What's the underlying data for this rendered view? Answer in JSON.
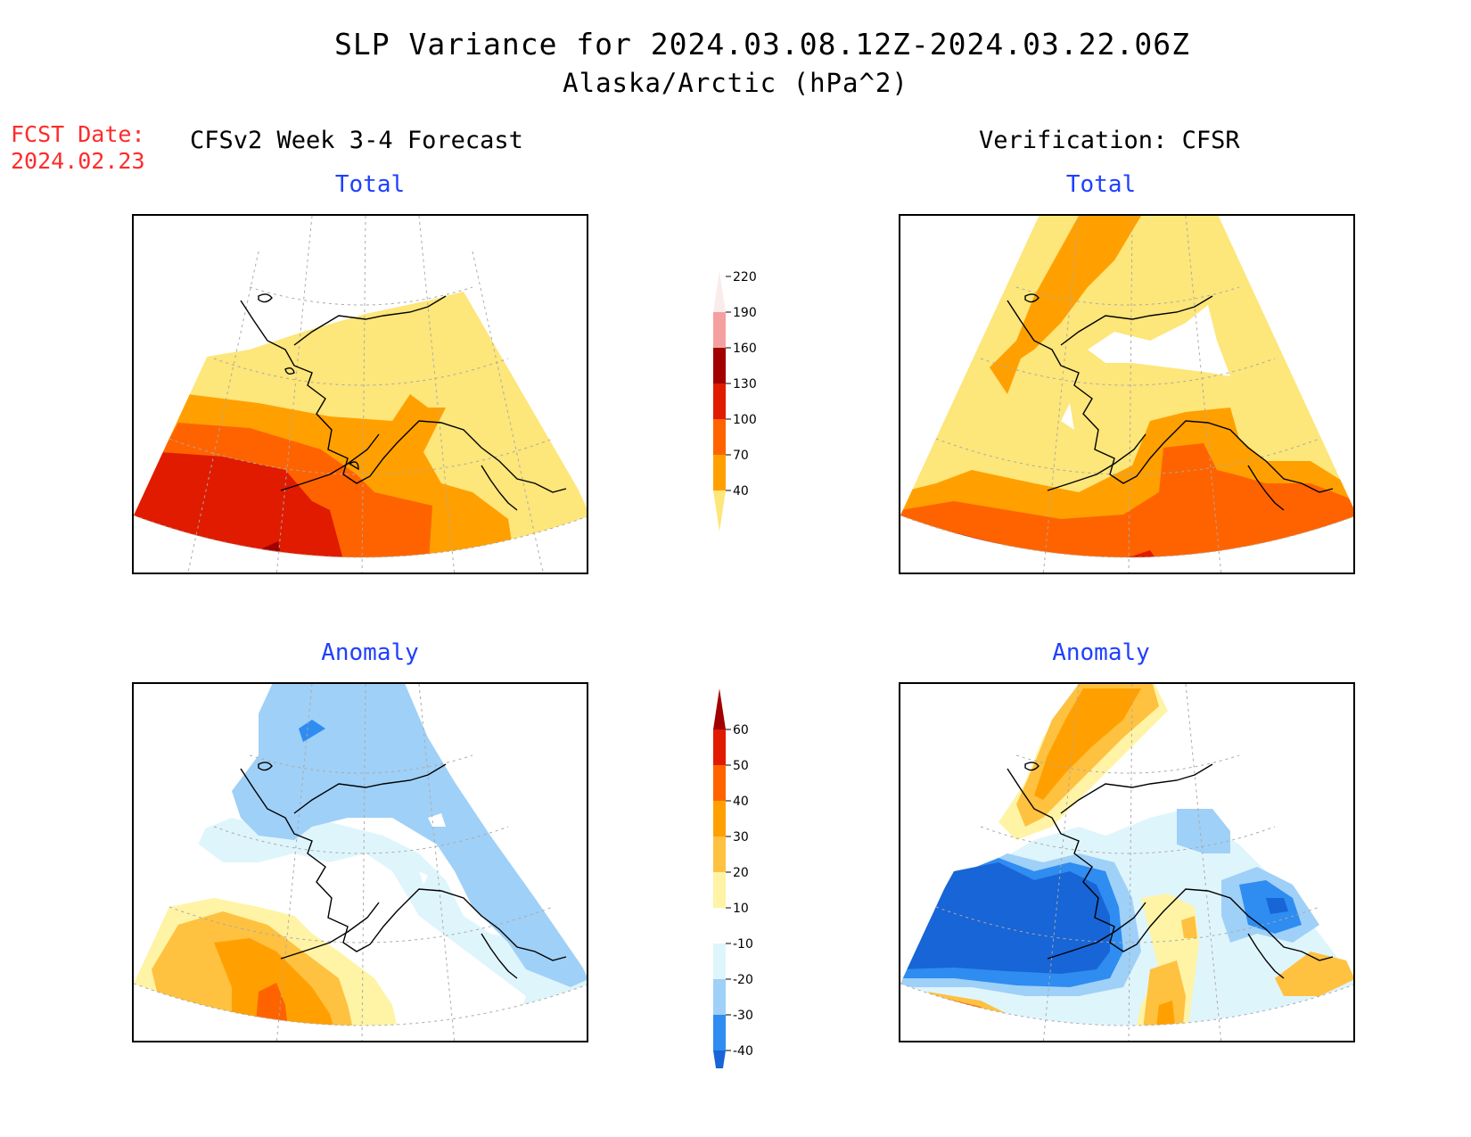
{
  "header": {
    "title": "SLP Variance for 2024.03.08.12Z-2024.03.22.06Z",
    "subtitle": "Alaska/Arctic (hPa^2)",
    "fcst_label": "FCST Date:",
    "fcst_date": "2024.02.23",
    "left_column": "CFSv2 Week 3-4 Forecast",
    "right_column": "Verification: CFSR"
  },
  "panels": {
    "forecast_total": {
      "title": "Total"
    },
    "verif_total": {
      "title": "Total"
    },
    "forecast_anomaly": {
      "title": "Anomaly"
    },
    "verif_anomaly": {
      "title": "Anomaly"
    }
  },
  "colorbars": {
    "total": {
      "levels": [
        "40",
        "70",
        "100",
        "130",
        "160",
        "190",
        "220"
      ],
      "colors": [
        "#fde67a",
        "#ffa000",
        "#ff6300",
        "#e01b00",
        "#a20000",
        "#f5a0a0",
        "#fcebeb"
      ]
    },
    "anomaly": {
      "levels": [
        "-40",
        "-30",
        "-20",
        "-10",
        "10",
        "20",
        "30",
        "40",
        "50",
        "60"
      ],
      "colors": [
        "#1765d6",
        "#2f8cf0",
        "#9fd0f7",
        "#dff5fc",
        "#ffffff",
        "#fff3a5",
        "#fec140",
        "#ffa000",
        "#ff6300",
        "#e01b00",
        "#a20000"
      ]
    }
  }
}
